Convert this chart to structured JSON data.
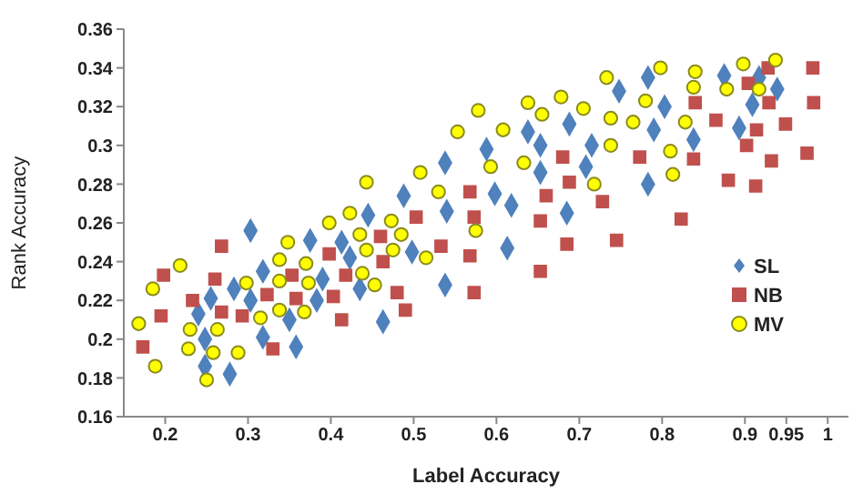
{
  "chart_data": {
    "type": "scatter",
    "xlabel": "Label Accuracy",
    "ylabel": "Rank Accuracy",
    "xlim": [
      0.15,
      1.025
    ],
    "ylim": [
      0.16,
      0.36
    ],
    "xticks": [
      0.2,
      0.3,
      0.4,
      0.5,
      0.6,
      0.7,
      0.8,
      0.9,
      0.95,
      1
    ],
    "yticks": [
      0.16,
      0.18,
      0.2,
      0.22,
      0.24,
      0.26,
      0.28,
      0.3,
      0.32,
      0.34,
      0.36
    ],
    "grid": false,
    "legend": "right",
    "series": [
      {
        "name": "SL",
        "color": "#4f81bd",
        "marker": "diamond",
        "x": [
          0.303,
          0.488,
          0.538,
          0.54,
          0.445,
          0.375,
          0.413,
          0.498,
          0.783,
          0.748,
          0.875,
          0.917,
          0.939,
          0.803,
          0.909,
          0.688,
          0.638,
          0.79,
          0.893,
          0.588,
          0.653,
          0.715,
          0.838,
          0.708,
          0.653,
          0.598,
          0.618,
          0.685,
          0.783,
          0.613,
          0.24,
          0.255,
          0.283,
          0.248,
          0.248,
          0.278,
          0.303,
          0.318,
          0.318,
          0.35,
          0.358,
          0.383,
          0.39,
          0.435,
          0.423,
          0.463,
          0.538
        ],
        "values": [
          0.256,
          0.274,
          0.291,
          0.266,
          0.264,
          0.251,
          0.25,
          0.245,
          0.335,
          0.328,
          0.336,
          0.335,
          0.329,
          0.32,
          0.321,
          0.311,
          0.307,
          0.308,
          0.309,
          0.298,
          0.3,
          0.3,
          0.303,
          0.289,
          0.286,
          0.275,
          0.269,
          0.265,
          0.28,
          0.247,
          0.213,
          0.221,
          0.226,
          0.2,
          0.186,
          0.182,
          0.22,
          0.235,
          0.201,
          0.21,
          0.196,
          0.22,
          0.231,
          0.226,
          0.242,
          0.209,
          0.228
        ]
      },
      {
        "name": "NB",
        "color": "#c0504d",
        "marker": "square",
        "x": [
          0.268,
          0.46,
          0.503,
          0.568,
          0.573,
          0.533,
          0.928,
          0.904,
          0.982,
          0.983,
          0.929,
          0.84,
          0.865,
          0.914,
          0.949,
          0.902,
          0.838,
          0.773,
          0.68,
          0.932,
          0.975,
          0.688,
          0.66,
          0.728,
          0.653,
          0.823,
          0.88,
          0.913,
          0.685,
          0.745,
          0.173,
          0.195,
          0.198,
          0.233,
          0.26,
          0.268,
          0.293,
          0.323,
          0.33,
          0.353,
          0.358,
          0.403,
          0.398,
          0.413,
          0.418,
          0.463,
          0.48,
          0.49,
          0.568,
          0.573,
          0.653
        ],
        "values": [
          0.248,
          0.253,
          0.263,
          0.276,
          0.263,
          0.248,
          0.34,
          0.332,
          0.34,
          0.322,
          0.322,
          0.322,
          0.313,
          0.308,
          0.311,
          0.3,
          0.293,
          0.294,
          0.294,
          0.292,
          0.296,
          0.281,
          0.274,
          0.271,
          0.261,
          0.262,
          0.282,
          0.279,
          0.249,
          0.251,
          0.196,
          0.212,
          0.233,
          0.22,
          0.231,
          0.214,
          0.212,
          0.223,
          0.195,
          0.233,
          0.221,
          0.222,
          0.244,
          0.21,
          0.233,
          0.24,
          0.224,
          0.215,
          0.243,
          0.224,
          0.235
        ]
      },
      {
        "name": "MV",
        "color": "#ffff00",
        "marker": "circle",
        "x": [
          0.443,
          0.508,
          0.553,
          0.578,
          0.53,
          0.423,
          0.398,
          0.473,
          0.435,
          0.485,
          0.575,
          0.348,
          0.443,
          0.475,
          0.733,
          0.798,
          0.84,
          0.898,
          0.937,
          0.838,
          0.878,
          0.917,
          0.78,
          0.638,
          0.678,
          0.705,
          0.655,
          0.738,
          0.765,
          0.828,
          0.608,
          0.738,
          0.81,
          0.633,
          0.593,
          0.718,
          0.813,
          0.168,
          0.185,
          0.218,
          0.188,
          0.23,
          0.228,
          0.25,
          0.263,
          0.258,
          0.288,
          0.298,
          0.338,
          0.338,
          0.315,
          0.338,
          0.368,
          0.373,
          0.37,
          0.438,
          0.453,
          0.515
        ],
        "values": [
          0.281,
          0.286,
          0.307,
          0.318,
          0.276,
          0.265,
          0.26,
          0.261,
          0.254,
          0.254,
          0.256,
          0.25,
          0.246,
          0.246,
          0.335,
          0.34,
          0.338,
          0.342,
          0.344,
          0.33,
          0.329,
          0.329,
          0.323,
          0.322,
          0.325,
          0.319,
          0.316,
          0.314,
          0.312,
          0.312,
          0.308,
          0.3,
          0.297,
          0.291,
          0.289,
          0.28,
          0.285,
          0.208,
          0.226,
          0.238,
          0.186,
          0.205,
          0.195,
          0.179,
          0.205,
          0.193,
          0.193,
          0.229,
          0.23,
          0.241,
          0.211,
          0.215,
          0.214,
          0.229,
          0.239,
          0.234,
          0.228,
          0.242
        ]
      }
    ]
  }
}
